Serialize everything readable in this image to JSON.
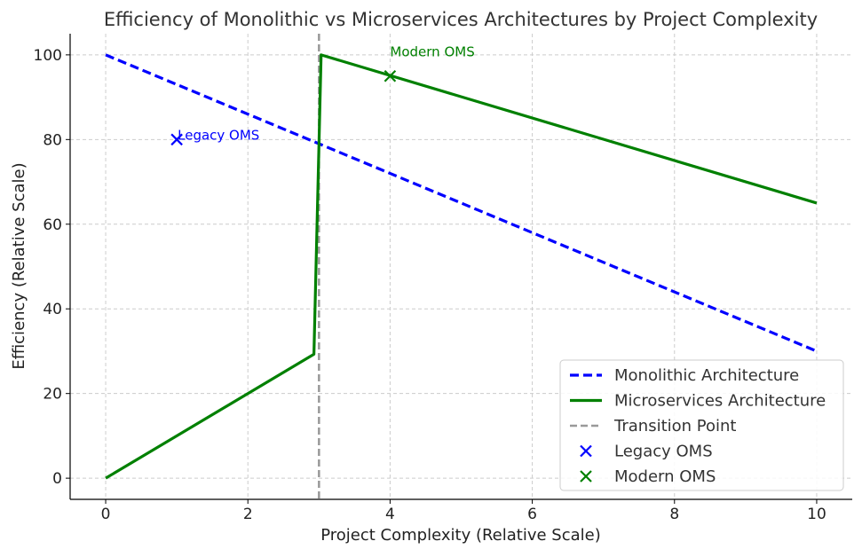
{
  "chart_data": {
    "type": "line",
    "title": "Efficiency of Monolithic vs Microservices Architectures by Project Complexity",
    "xlabel": "Project Complexity (Relative Scale)",
    "ylabel": "Efficiency (Relative Scale)",
    "xlim": [
      -0.5,
      10.5
    ],
    "ylim": [
      -5,
      105
    ],
    "xticks": [
      0,
      2,
      4,
      6,
      8,
      10
    ],
    "yticks": [
      0,
      20,
      40,
      60,
      80,
      100
    ],
    "grid": true,
    "legend_position": "bottom-right",
    "series": [
      {
        "name": "Monolithic Architecture",
        "style": "dashed",
        "color": "#0000ff",
        "points": [
          [
            0,
            100
          ],
          [
            10,
            30
          ]
        ]
      },
      {
        "name": "Microservices Architecture",
        "style": "solid",
        "color": "#008000",
        "points": [
          [
            0,
            0
          ],
          [
            2.929,
            29.29
          ],
          [
            3.03,
            100
          ],
          [
            10,
            65
          ]
        ]
      }
    ],
    "vlines": [
      {
        "name": "Transition Point",
        "x": 3,
        "style": "dashed",
        "color": "#999999"
      }
    ],
    "markers": [
      {
        "name": "Legacy OMS",
        "x": 1,
        "y": 80,
        "marker": "x",
        "color": "#0000ff",
        "label": "Legacy OMS"
      },
      {
        "name": "Modern OMS",
        "x": 4,
        "y": 95,
        "marker": "x",
        "color": "#008000",
        "label": "Modern OMS"
      }
    ]
  }
}
